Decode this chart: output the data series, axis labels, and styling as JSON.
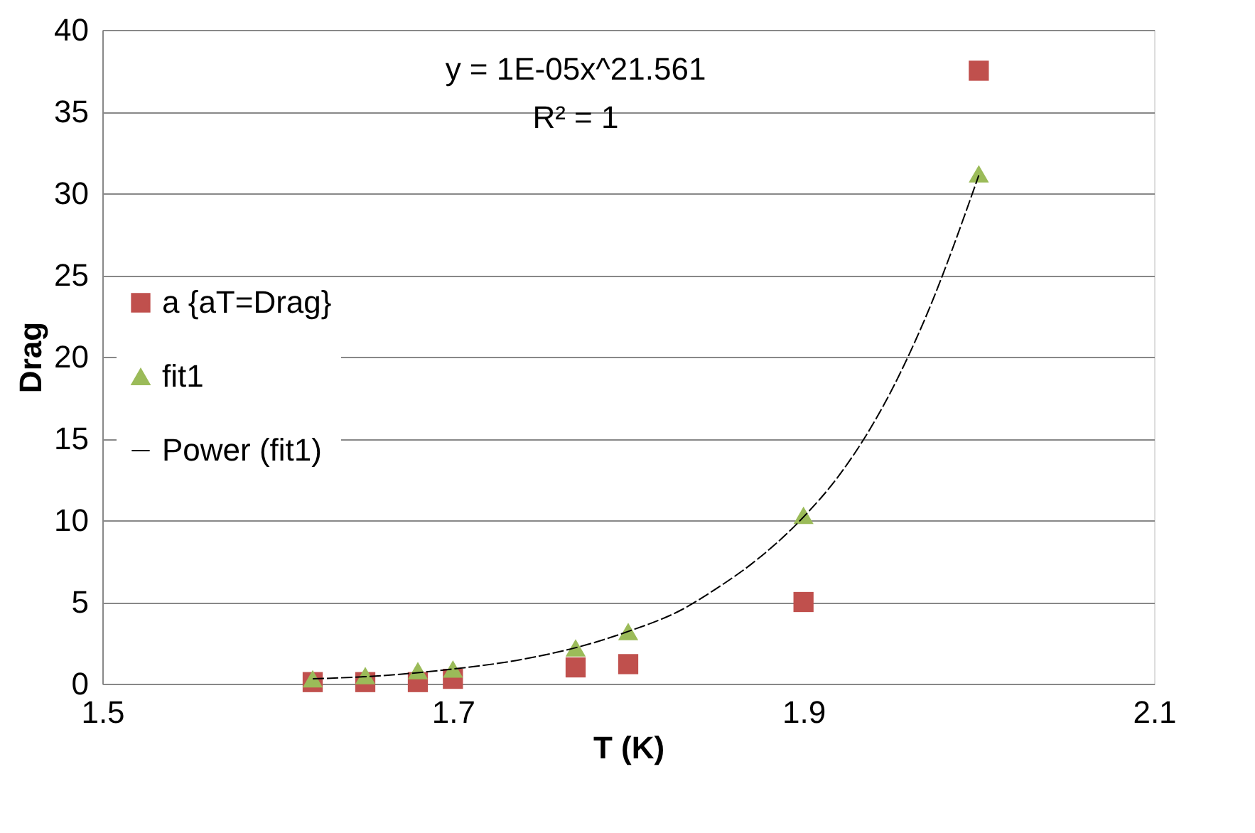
{
  "chart_data": {
    "type": "scatter",
    "xlabel": "T (K)",
    "ylabel": "Drag",
    "xlim": [
      1.5,
      2.1
    ],
    "xticks": [
      1.5,
      1.7,
      1.9,
      2.1
    ],
    "ylim": [
      0,
      40
    ],
    "yticks": [
      0,
      5,
      10,
      15,
      20,
      25,
      30,
      35,
      40
    ],
    "grid": "y",
    "legend": "left",
    "annotations": [
      "y = 1E-05x^21.561",
      "R² = 1"
    ],
    "series": [
      {
        "name": "a {aT=Drag}",
        "color": "#c0504d",
        "marker": "square",
        "x": [
          1.62,
          1.65,
          1.68,
          1.7,
          1.77,
          1.8,
          1.9,
          2.0
        ],
        "values": [
          0.1,
          0.1,
          0.1,
          0.3,
          1.0,
          1.2,
          5.0,
          37.5
        ]
      },
      {
        "name": "fit1",
        "color": "#9bbb59",
        "marker": "triangle",
        "x": [
          1.62,
          1.65,
          1.68,
          1.7,
          1.77,
          1.8,
          1.9,
          2.0
        ],
        "values": [
          0.3,
          0.5,
          0.8,
          0.9,
          2.2,
          3.2,
          10.3,
          31.2
        ]
      },
      {
        "name": "Power (fit1)",
        "type": "line",
        "color": "#000000",
        "marker": "none",
        "line_style": "dashed",
        "x": [
          1.62,
          1.66,
          1.7,
          1.74,
          1.78,
          1.8,
          1.83,
          1.85,
          1.87,
          1.9,
          1.92,
          1.95,
          1.97,
          2.0
        ],
        "values": [
          0.3,
          0.5,
          0.9,
          1.5,
          2.5,
          3.2,
          4.5,
          5.8,
          7.3,
          10.2,
          12.7,
          17.9,
          22.5,
          31.1
        ]
      }
    ]
  }
}
